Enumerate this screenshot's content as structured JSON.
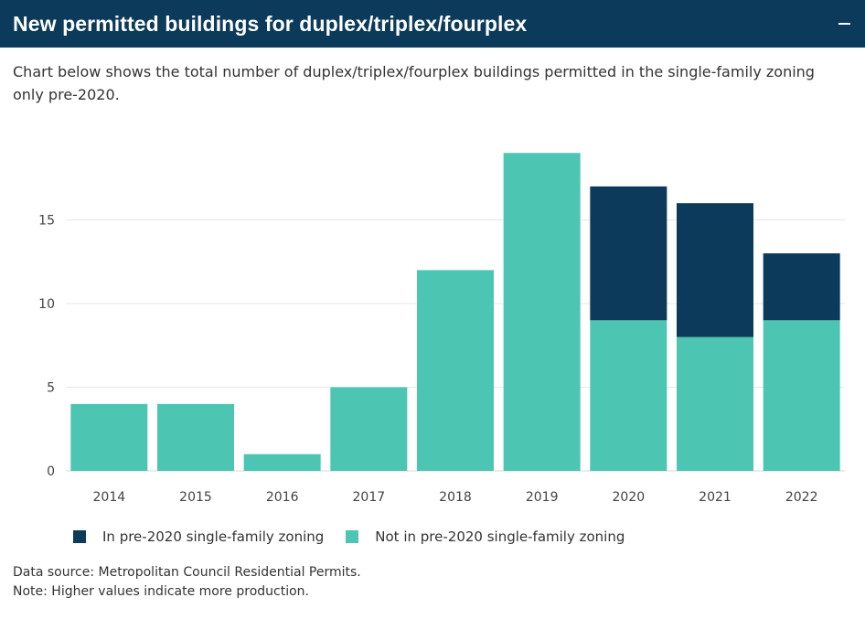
{
  "header": {
    "title": "New permitted buildings for duplex/triplex/fourplex",
    "collapse_icon": "minus-icon"
  },
  "description": "Chart below shows the total number of duplex/triplex/fourplex buildings permitted in the single-family zoning only pre-2020.",
  "colors": {
    "header_bg": "#0c3a5a",
    "in_zoning": "#0c3a5a",
    "not_in_zoning": "#4cc5b2"
  },
  "chart_data": {
    "type": "bar",
    "stacked": true,
    "categories": [
      "2014",
      "2015",
      "2016",
      "2017",
      "2018",
      "2019",
      "2020",
      "2021",
      "2022"
    ],
    "series": [
      {
        "name": "Not in pre-2020 single-family zoning",
        "color": "#4cc5b2",
        "values": [
          4,
          4,
          1,
          5,
          12,
          19,
          9,
          8,
          9
        ]
      },
      {
        "name": "In pre-2020 single-family zoning",
        "color": "#0c3a5a",
        "values": [
          0,
          0,
          0,
          0,
          0,
          0,
          8,
          8,
          4
        ]
      }
    ],
    "yticks": [
      0,
      5,
      10,
      15
    ],
    "ylim": [
      0,
      19
    ],
    "grid": true,
    "legend_position": "bottom"
  },
  "legend": [
    {
      "label": "In pre-2020 single-family zoning",
      "color": "#0c3a5a"
    },
    {
      "label": "Not in pre-2020 single-family zoning",
      "color": "#4cc5b2"
    }
  ],
  "footer": {
    "source": "Data source: Metropolitan Council Residential Permits.",
    "note": "Note: Higher values indicate more production."
  }
}
